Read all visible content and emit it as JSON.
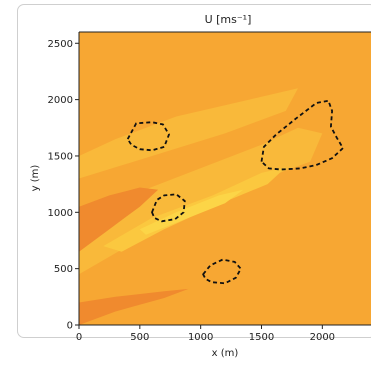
{
  "chart_data": {
    "type": "heatmap",
    "title": "U [ms⁻¹]",
    "xlabel": "x (m)",
    "ylabel": "y (m)",
    "xlim": [
      0,
      2400
    ],
    "ylim": [
      0,
      2600
    ],
    "xticks": [
      0,
      500,
      1000,
      1500,
      2000
    ],
    "yticks": [
      0,
      500,
      1000,
      1500,
      2000,
      2500
    ],
    "xtick_labels": [
      "0",
      "500",
      "1000",
      "1500",
      "2000"
    ],
    "ytick_labels": [
      "0",
      "500",
      "1000",
      "1500",
      "2000",
      "2500"
    ],
    "grid": false,
    "colors": {
      "background_field": "#f7a733",
      "wake_light": "#f9b93a",
      "wake_lighter": "#fbc83f",
      "wake_core": "#fcd547",
      "low_speed": "#f08a2e",
      "contour": "#111111"
    },
    "contours": [
      {
        "name": "obstacle-1",
        "points": [
          [
            400,
            1650
          ],
          [
            470,
            1790
          ],
          [
            600,
            1800
          ],
          [
            690,
            1780
          ],
          [
            740,
            1690
          ],
          [
            700,
            1580
          ],
          [
            600,
            1550
          ],
          [
            500,
            1560
          ],
          [
            430,
            1600
          ],
          [
            400,
            1650
          ]
        ]
      },
      {
        "name": "obstacle-2",
        "points": [
          [
            600,
            1000
          ],
          [
            640,
            1110
          ],
          [
            700,
            1150
          ],
          [
            800,
            1160
          ],
          [
            870,
            1100
          ],
          [
            860,
            1000
          ],
          [
            790,
            940
          ],
          [
            680,
            920
          ],
          [
            620,
            950
          ],
          [
            600,
            1000
          ]
        ]
      },
      {
        "name": "obstacle-3",
        "points": [
          [
            1020,
            450
          ],
          [
            1080,
            530
          ],
          [
            1180,
            580
          ],
          [
            1280,
            560
          ],
          [
            1330,
            500
          ],
          [
            1290,
            420
          ],
          [
            1200,
            370
          ],
          [
            1090,
            380
          ],
          [
            1040,
            410
          ],
          [
            1020,
            450
          ]
        ]
      },
      {
        "name": "obstacle-4",
        "points": [
          [
            1500,
            1450
          ],
          [
            1520,
            1580
          ],
          [
            1620,
            1690
          ],
          [
            1780,
            1830
          ],
          [
            1950,
            1970
          ],
          [
            2050,
            1990
          ],
          [
            2080,
            1900
          ],
          [
            2070,
            1760
          ],
          [
            2120,
            1660
          ],
          [
            2170,
            1570
          ],
          [
            2080,
            1480
          ],
          [
            1950,
            1420
          ],
          [
            1820,
            1390
          ],
          [
            1660,
            1380
          ],
          [
            1560,
            1390
          ],
          [
            1500,
            1450
          ]
        ]
      }
    ],
    "wake_regions": [
      {
        "name": "wake-outer",
        "color_key": "wake_light",
        "points": [
          [
            0,
            450
          ],
          [
            0,
            900
          ],
          [
            300,
            1100
          ],
          [
            900,
            1350
          ],
          [
            1500,
            1600
          ],
          [
            1800,
            1750
          ],
          [
            2000,
            1700
          ],
          [
            1900,
            1450
          ],
          [
            1400,
            1250
          ],
          [
            900,
            1000
          ],
          [
            400,
            700
          ],
          [
            0,
            450
          ]
        ]
      },
      {
        "name": "wake-upper",
        "color_key": "wake_light",
        "points": [
          [
            0,
            1300
          ],
          [
            0,
            1500
          ],
          [
            300,
            1650
          ],
          [
            800,
            1850
          ],
          [
            1400,
            2000
          ],
          [
            1800,
            2100
          ],
          [
            1700,
            1900
          ],
          [
            1200,
            1700
          ],
          [
            600,
            1500
          ],
          [
            0,
            1300
          ]
        ]
      },
      {
        "name": "wake-middle",
        "color_key": "wake_lighter",
        "points": [
          [
            200,
            700
          ],
          [
            600,
            950
          ],
          [
            1100,
            1150
          ],
          [
            1500,
            1350
          ],
          [
            1700,
            1400
          ],
          [
            1550,
            1250
          ],
          [
            1100,
            1050
          ],
          [
            700,
            850
          ],
          [
            350,
            650
          ],
          [
            200,
            700
          ]
        ]
      },
      {
        "name": "wake-core",
        "color_key": "wake_core",
        "points": [
          [
            500,
            850
          ],
          [
            800,
            1000
          ],
          [
            1150,
            1150
          ],
          [
            1350,
            1200
          ],
          [
            1200,
            1080
          ],
          [
            850,
            930
          ],
          [
            550,
            800
          ],
          [
            500,
            850
          ]
        ]
      },
      {
        "name": "low-speed-band",
        "color_key": "low_speed",
        "points": [
          [
            0,
            650
          ],
          [
            0,
            1050
          ],
          [
            250,
            1150
          ],
          [
            500,
            1220
          ],
          [
            650,
            1200
          ],
          [
            500,
            1050
          ],
          [
            250,
            850
          ],
          [
            0,
            650
          ]
        ]
      },
      {
        "name": "low-speed-lower",
        "color_key": "low_speed",
        "points": [
          [
            0,
            0
          ],
          [
            0,
            200
          ],
          [
            300,
            250
          ],
          [
            700,
            300
          ],
          [
            900,
            320
          ],
          [
            700,
            240
          ],
          [
            300,
            120
          ],
          [
            0,
            0
          ]
        ]
      }
    ]
  }
}
